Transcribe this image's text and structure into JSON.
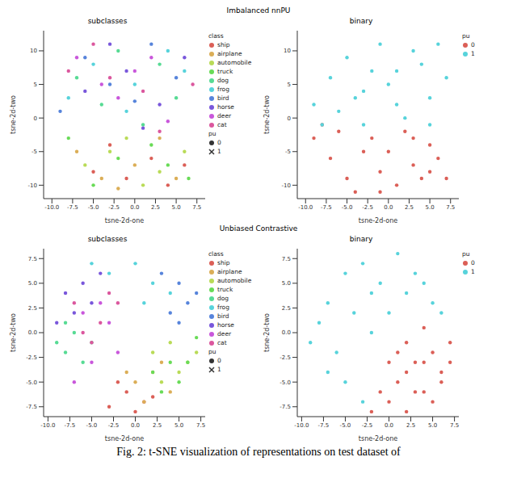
{
  "figure": {
    "rows": [
      {
        "title": "Imbalanced nnPU"
      },
      {
        "title": "Unbiased Contrastive"
      }
    ],
    "caption": "Fig. 2: t-SNE visualization of representations on test dataset of"
  },
  "chart_data": [
    {
      "type": "scatter",
      "title": "subclasses",
      "x_label": "tsne-2d-one",
      "y_label": "tsne-2d-two",
      "xlim": [
        -11,
        8.5
      ],
      "xticks": [
        {
          "value": -10,
          "label": "-10.0"
        },
        -7.5,
        {
          "value": -5,
          "label": "-5.0"
        },
        -2.5,
        {
          "value": 0,
          "label": "0.0"
        },
        2.5,
        {
          "value": 5,
          "label": "5.0"
        },
        7.5
      ],
      "ylim": [
        -12,
        13
      ],
      "yticks": [
        -10,
        -5,
        0,
        5,
        10
      ],
      "legend_title": "class",
      "series": [
        {
          "name": "ship",
          "color": "#db5f57",
          "x": [
            -5,
            -1,
            2,
            4,
            -3,
            6
          ],
          "y": [
            -8,
            -9,
            -6,
            -10,
            -4,
            -7
          ]
        },
        {
          "name": "airplane",
          "color": "#dbae57",
          "x": [
            -7,
            -4,
            0,
            3,
            5,
            -2
          ],
          "y": [
            -5,
            -9,
            -7,
            -3,
            -9,
            -10.5
          ]
        },
        {
          "name": "automobile",
          "color": "#b9db57",
          "x": [
            -6,
            -3,
            1,
            3,
            6,
            -1
          ],
          "y": [
            -7,
            -5,
            -10,
            -8,
            -5,
            -3
          ]
        },
        {
          "name": "truck",
          "color": "#69db57",
          "x": [
            -8,
            -5,
            -2,
            2,
            4,
            6.5
          ],
          "y": [
            -3,
            -10,
            -6,
            -4,
            -7,
            -9
          ]
        },
        {
          "name": "dog",
          "color": "#57db94",
          "x": [
            -7,
            -2,
            3,
            5,
            -4,
            1
          ],
          "y": [
            6,
            10,
            8,
            3,
            2,
            -1
          ]
        },
        {
          "name": "frog",
          "color": "#57d3db",
          "x": [
            -8,
            -5,
            0,
            4,
            6,
            -1
          ],
          "y": [
            3,
            8,
            5,
            10,
            7,
            1
          ]
        },
        {
          "name": "bird",
          "color": "#5784db",
          "x": [
            -9,
            -3,
            2,
            5,
            -6,
            0
          ],
          "y": [
            1,
            5,
            11,
            6,
            9,
            2.5
          ]
        },
        {
          "name": "horse",
          "color": "#7957db",
          "x": [
            -6,
            -1,
            3,
            6,
            -3,
            1
          ],
          "y": [
            4,
            7,
            2,
            9,
            11,
            -1.5
          ]
        },
        {
          "name": "deer",
          "color": "#c957db",
          "x": [
            -7,
            -2,
            2,
            4,
            -4,
            0
          ],
          "y": [
            9,
            3,
            9,
            -0.5,
            5,
            7
          ]
        },
        {
          "name": "cat",
          "color": "#db579e",
          "x": [
            -5,
            -3,
            1,
            7,
            -8,
            3
          ],
          "y": [
            11,
            6,
            4,
            5,
            7,
            -2
          ]
        }
      ],
      "styles": {
        "title": "pu",
        "entries": [
          {
            "name": "0",
            "marker": "circle"
          },
          {
            "name": "1",
            "marker": "cross"
          }
        ]
      }
    },
    {
      "type": "scatter",
      "title": "binary",
      "x_label": "tsne-2d-one",
      "y_label": "tsne-2d-two",
      "xlim": [
        -11,
        8.5
      ],
      "xticks": [
        {
          "value": -10,
          "label": "-10.0"
        },
        -7.5,
        {
          "value": -5,
          "label": "-5.0"
        },
        -2.5,
        {
          "value": 0,
          "label": "0.0"
        },
        2.5,
        {
          "value": 5,
          "label": "5.0"
        },
        7.5
      ],
      "ylim": [
        -12,
        13
      ],
      "yticks": [
        -10,
        -5,
        0,
        5,
        10
      ],
      "legend_title": "pu",
      "series": [
        {
          "name": "0",
          "color": "#db5f57",
          "x": [
            -9,
            -7,
            -5,
            -3,
            -1,
            1,
            3,
            5,
            7,
            -6,
            -4,
            -2,
            0,
            2,
            4,
            6,
            -8,
            -1,
            3,
            5
          ],
          "y": [
            -3,
            -6,
            -9,
            -5,
            -8,
            -10,
            -7,
            -4,
            -9,
            -2,
            -11,
            -3,
            -5,
            -2,
            -9,
            -6,
            -1,
            -11,
            -3,
            -8
          ]
        },
        {
          "name": "1",
          "color": "#57d3db",
          "x": [
            -9,
            -7,
            -5,
            -3,
            -1,
            1,
            3,
            5,
            7,
            -8,
            -6,
            -4,
            -2,
            0,
            2,
            4,
            6,
            -3,
            1,
            5
          ],
          "y": [
            2,
            6,
            9,
            4,
            11,
            7,
            10,
            3,
            6,
            -1,
            1,
            3,
            7,
            5,
            0,
            8,
            11,
            -1,
            2,
            -1
          ]
        }
      ]
    },
    {
      "type": "scatter",
      "title": "subclasses",
      "x_label": "tsne-2d-one",
      "y_label": "tsne-2d-two",
      "xlim": [
        -10.5,
        8
      ],
      "xticks": [
        {
          "value": -10,
          "label": "-10.0"
        },
        -7.5,
        {
          "value": -5,
          "label": "-5.0"
        },
        -2.5,
        {
          "value": 0,
          "label": "0.0"
        },
        2.5,
        {
          "value": 5,
          "label": "5.0"
        },
        7.5
      ],
      "ylim": [
        -8.5,
        8.5
      ],
      "yticks": [
        -7.5,
        {
          "value": -5,
          "label": "-5.0"
        },
        -2.5,
        {
          "value": 0,
          "label": "0.0"
        },
        2.5,
        {
          "value": 5,
          "label": "5.0"
        },
        7.5
      ],
      "legend_title": "class",
      "series": [
        {
          "name": "ship",
          "color": "#db5f57",
          "x": [
            -3,
            -1,
            0,
            1,
            -2,
            2
          ],
          "y": [
            -7.5,
            -6,
            -8,
            -7,
            -5,
            -6.5
          ]
        },
        {
          "name": "airplane",
          "color": "#dbae57",
          "x": [
            0,
            2,
            4,
            1,
            3,
            -1
          ],
          "y": [
            -5,
            -4,
            -6,
            -7,
            -3,
            -4
          ]
        },
        {
          "name": "automobile",
          "color": "#b9db57",
          "x": [
            2,
            4,
            6,
            3,
            5,
            7
          ],
          "y": [
            -2,
            -1,
            -3,
            -5,
            -4,
            -2
          ]
        },
        {
          "name": "truck",
          "color": "#69db57",
          "x": [
            3,
            5,
            6,
            4,
            2,
            7
          ],
          "y": [
            -6,
            -5,
            -3,
            -3,
            -4,
            -0.5
          ]
        },
        {
          "name": "dog",
          "color": "#57db94",
          "x": [
            -9,
            -8,
            -7,
            -6,
            -5,
            -8
          ],
          "y": [
            -1,
            -2,
            0,
            -3,
            -1,
            1
          ]
        },
        {
          "name": "frog",
          "color": "#57d3db",
          "x": [
            -3,
            0,
            2,
            4,
            -5,
            1
          ],
          "y": [
            6,
            7,
            5,
            4,
            7,
            3
          ]
        },
        {
          "name": "bird",
          "color": "#5784db",
          "x": [
            3,
            5,
            6,
            4,
            7,
            5
          ],
          "y": [
            6,
            5,
            3,
            2,
            4,
            1
          ]
        },
        {
          "name": "horse",
          "color": "#7957db",
          "x": [
            -8,
            -6,
            -7,
            -5,
            -9,
            -4
          ],
          "y": [
            4,
            5,
            2,
            3,
            1,
            6
          ]
        },
        {
          "name": "deer",
          "color": "#c957db",
          "x": [
            -6,
            -4,
            -5,
            -3,
            -2,
            -7
          ],
          "y": [
            2,
            3,
            -3,
            1,
            -2,
            -5
          ]
        },
        {
          "name": "cat",
          "color": "#db579e",
          "x": [
            -6,
            -4,
            -3,
            -5,
            -2,
            -7
          ],
          "y": [
            0,
            1,
            4,
            -1,
            3,
            3
          ]
        }
      ],
      "styles": {
        "title": "pu",
        "entries": [
          {
            "name": "0",
            "marker": "circle"
          },
          {
            "name": "1",
            "marker": "cross"
          }
        ]
      }
    },
    {
      "type": "scatter",
      "title": "binary",
      "x_label": "tsne-2d-one",
      "y_label": "tsne-2d-two",
      "xlim": [
        -10.5,
        8
      ],
      "xticks": [
        {
          "value": -10,
          "label": "-10.0"
        },
        -7.5,
        {
          "value": -5,
          "label": "-5.0"
        },
        -2.5,
        {
          "value": 0,
          "label": "0.0"
        },
        2.5,
        {
          "value": 5,
          "label": "5.0"
        },
        7.5
      ],
      "ylim": [
        -8.5,
        8.5
      ],
      "yticks": [
        -7.5,
        {
          "value": -5,
          "label": "-5.0"
        },
        -2.5,
        {
          "value": 0,
          "label": "0.0"
        },
        2.5,
        {
          "value": 5,
          "label": "5.0"
        },
        7.5
      ],
      "legend_title": "pu",
      "series": [
        {
          "name": "0",
          "color": "#db5f57",
          "x": [
            0,
            2,
            4,
            6,
            1,
            3,
            5,
            7,
            -1,
            2,
            4,
            6,
            0,
            3,
            5,
            7,
            1,
            -2,
            4,
            2
          ],
          "y": [
            -7,
            -8,
            -6,
            -4,
            -5,
            -3,
            -2,
            -1,
            -6,
            -1,
            -3,
            -5,
            -3,
            -6,
            -7,
            -3,
            -2,
            -8,
            0.5,
            -4
          ]
        },
        {
          "name": "1",
          "color": "#57d3db",
          "x": [
            -9,
            -7,
            -5,
            -3,
            -1,
            1,
            3,
            5,
            -8,
            -6,
            -4,
            -2,
            0,
            2,
            4,
            6,
            -5,
            -3,
            -7,
            -2
          ],
          "y": [
            -1,
            3,
            6,
            7,
            5,
            8,
            6,
            3,
            1,
            -2,
            2,
            4,
            2,
            4,
            5,
            2,
            -5,
            -7,
            -4,
            0
          ]
        }
      ]
    }
  ]
}
